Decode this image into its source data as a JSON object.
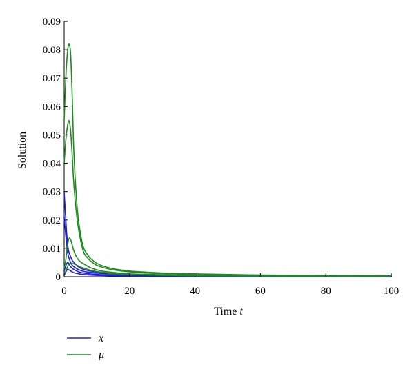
{
  "chart_data": {
    "type": "line",
    "title": "",
    "xlabel": "Time",
    "xlabel_var": "t",
    "ylabel": "Solution",
    "xlim": [
      0,
      100
    ],
    "ylim": [
      0,
      0.09
    ],
    "xticks": [
      "0",
      "20",
      "40",
      "60",
      "80",
      "100"
    ],
    "yticks": [
      "0",
      "0.01",
      "0.02",
      "0.03",
      "0.04",
      "0.05",
      "0.06",
      "0.07",
      "0.08",
      "0.09"
    ],
    "grid": false,
    "legend_position": "bottom-left",
    "legend": [
      {
        "name": "x",
        "color": "#1f1fd6"
      },
      {
        "name": "μ",
        "color": "#1e8a1e"
      }
    ],
    "series": [
      {
        "group": "x",
        "color": "#1f1fd6",
        "x": [
          0,
          1,
          2,
          3,
          5,
          8,
          12,
          20,
          40,
          100
        ],
        "values": [
          0.03,
          0.012,
          0.007,
          0.005,
          0.003,
          0.002,
          0.0014,
          0.0008,
          0.0004,
          0.0002
        ]
      },
      {
        "group": "x",
        "color": "#1f1fd6",
        "x": [
          0,
          1,
          2,
          3,
          5,
          8,
          12,
          20,
          40,
          100
        ],
        "values": [
          0.021,
          0.009,
          0.005,
          0.0035,
          0.0022,
          0.0015,
          0.0011,
          0.0007,
          0.0003,
          0.0001
        ]
      },
      {
        "group": "x",
        "color": "#1f1fd6",
        "x": [
          0,
          1,
          2,
          3,
          5,
          8,
          12,
          20,
          40,
          100
        ],
        "values": [
          0.002,
          0.005,
          0.0035,
          0.0025,
          0.0015,
          0.001,
          0.0007,
          0.0004,
          0.0002,
          0.0001
        ]
      },
      {
        "group": "x",
        "color": "#1f1fd6",
        "x": [
          0,
          1,
          2,
          3,
          5,
          8,
          12,
          20,
          40,
          100
        ],
        "values": [
          0.0005,
          0.0025,
          0.002,
          0.0014,
          0.0009,
          0.0006,
          0.0004,
          0.0002,
          0.0001,
          5e-05
        ]
      },
      {
        "group": "μ",
        "color": "#1e8a1e",
        "x": [
          0,
          0.5,
          1,
          1.5,
          2,
          2.5,
          3,
          4,
          5,
          6,
          7,
          8,
          9,
          10,
          12,
          15,
          20,
          25,
          30,
          40,
          60,
          100
        ],
        "values": [
          0.055,
          0.07,
          0.079,
          0.082,
          0.078,
          0.062,
          0.043,
          0.024,
          0.015,
          0.01,
          0.008,
          0.0065,
          0.0055,
          0.0047,
          0.0037,
          0.0028,
          0.002,
          0.0016,
          0.0013,
          0.001,
          0.0006,
          0.0003
        ]
      },
      {
        "group": "μ",
        "color": "#1e8a1e",
        "x": [
          0,
          0.5,
          1,
          1.5,
          2,
          2.5,
          3,
          4,
          5,
          6,
          7,
          8,
          9,
          10,
          12,
          15,
          20,
          25,
          30,
          40,
          60,
          100
        ],
        "values": [
          0.04,
          0.048,
          0.053,
          0.055,
          0.051,
          0.042,
          0.032,
          0.02,
          0.013,
          0.0085,
          0.0068,
          0.0056,
          0.0047,
          0.004,
          0.0032,
          0.0024,
          0.0017,
          0.0013,
          0.0011,
          0.0008,
          0.0005,
          0.0002
        ]
      },
      {
        "group": "μ",
        "color": "#1e8a1e",
        "x": [
          0,
          0.5,
          1,
          1.5,
          2,
          2.5,
          3,
          4,
          5,
          6,
          7,
          8,
          10,
          12,
          15,
          20,
          30,
          40,
          60,
          100
        ],
        "values": [
          0.003,
          0.006,
          0.011,
          0.0135,
          0.013,
          0.011,
          0.009,
          0.0065,
          0.0052,
          0.0045,
          0.0038,
          0.0032,
          0.0024,
          0.0019,
          0.0015,
          0.001,
          0.0007,
          0.0005,
          0.0003,
          0.0002
        ]
      },
      {
        "group": "μ",
        "color": "#1e8a1e",
        "x": [
          0,
          0.5,
          1,
          1.5,
          2,
          3,
          4,
          5,
          6,
          8,
          10,
          12,
          15,
          20,
          30,
          40,
          60,
          100
        ],
        "values": [
          0.001,
          0.002,
          0.0035,
          0.0045,
          0.0048,
          0.0045,
          0.004,
          0.0034,
          0.003,
          0.0023,
          0.0018,
          0.0015,
          0.0011,
          0.0008,
          0.0005,
          0.0003,
          0.0002,
          0.0001
        ]
      }
    ]
  }
}
